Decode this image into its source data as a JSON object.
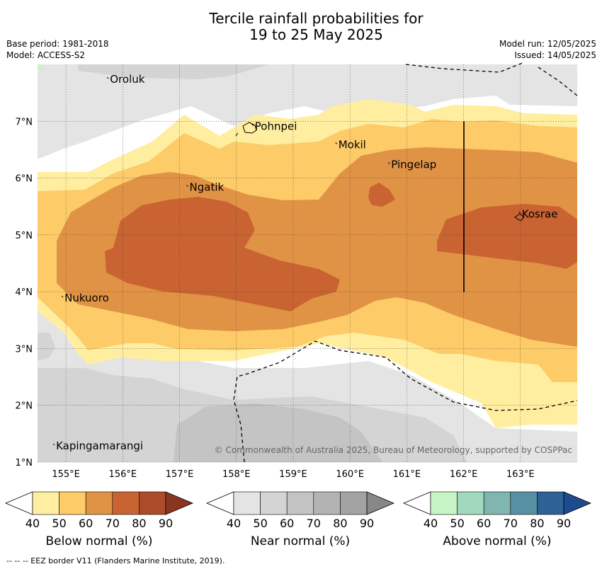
{
  "title": {
    "line1": "Tercile rainfall probabilities for",
    "line2": "19 to 25 May 2025"
  },
  "meta": {
    "base_period": "Base period: 1981-2018",
    "model": "Model: ACCESS-S2",
    "model_run": "Model run: 12/05/2025",
    "issued": "Issued: 14/05/2025"
  },
  "map": {
    "lon_range": [
      154.5,
      164
    ],
    "lat_range": [
      1,
      8
    ],
    "lon_ticks": [
      "155°E",
      "156°E",
      "157°E",
      "158°E",
      "159°E",
      "160°E",
      "161°E",
      "162°E",
      "163°E"
    ],
    "lat_ticks": [
      "1°N",
      "2°N",
      "3°N",
      "4°N",
      "5°N",
      "6°N",
      "7°N"
    ],
    "places": [
      {
        "name": "Oroluk",
        "lon": 155.75,
        "lat": 7.7
      },
      {
        "name": "Pohnpei",
        "lon": 158.3,
        "lat": 6.87
      },
      {
        "name": "Mokil",
        "lon": 159.77,
        "lat": 6.55
      },
      {
        "name": "Pingelap",
        "lon": 160.7,
        "lat": 6.2
      },
      {
        "name": "Ngatik",
        "lon": 157.15,
        "lat": 5.8
      },
      {
        "name": "Kosrae",
        "lon": 163.0,
        "lat": 5.33
      },
      {
        "name": "Nukuoro",
        "lon": 154.95,
        "lat": 3.85
      },
      {
        "name": "Kapingamarangi",
        "lon": 154.8,
        "lat": 1.25
      }
    ],
    "credit": "© Commonwealth of Australia 2025, Bureau of Meteorology, supported by COSPPac"
  },
  "colorbars": [
    {
      "label": "Below normal (%)",
      "ticks": [
        "40",
        "50",
        "60",
        "70",
        "80",
        "90"
      ],
      "colors": [
        "#ffeea0",
        "#fdcb68",
        "#e19345",
        "#c96432",
        "#ad4c2a",
        "#8b3520"
      ]
    },
    {
      "label": "Near normal (%)",
      "ticks": [
        "40",
        "50",
        "60",
        "70",
        "80",
        "90"
      ],
      "colors": [
        "#e4e4e4",
        "#d4d4d4",
        "#c4c4c4",
        "#b3b3b3",
        "#a3a3a3",
        "#878787"
      ]
    },
    {
      "label": "Above normal (%)",
      "ticks": [
        "40",
        "50",
        "60",
        "70",
        "80",
        "90"
      ],
      "colors": [
        "#c8f5c6",
        "#a0d9bd",
        "#80b5b0",
        "#5890a3",
        "#2e6297",
        "#1e4b8d"
      ]
    }
  ],
  "footnote": "--  --  -- EEZ border V11 (Flanders Marine Institute, 2019)."
}
